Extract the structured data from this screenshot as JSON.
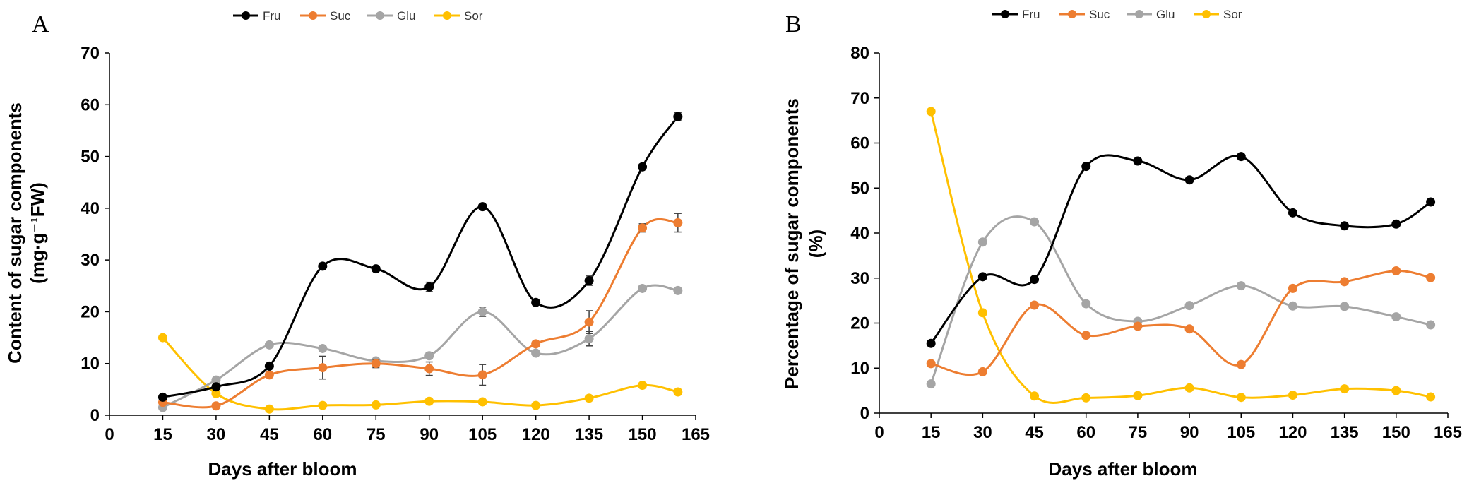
{
  "colors": {
    "Fru": "#000000",
    "Suc": "#ED7D31",
    "Glu": "#A5A5A5",
    "Sor": "#FFC000",
    "axis": "#000000",
    "errorbar": "#404040"
  },
  "legend": [
    "Fru",
    "Suc",
    "Glu",
    "Sor"
  ],
  "chart_data": [
    {
      "panel": "A",
      "type": "line",
      "smooth": true,
      "xlabel": "Days after bloom",
      "ylabel_line1": "Content of sugar components",
      "ylabel_line2": "(mg·g⁻¹FW)",
      "xlim": [
        0,
        165
      ],
      "ylim": [
        0,
        70
      ],
      "xticks": [
        0,
        15,
        30,
        45,
        60,
        75,
        90,
        105,
        120,
        135,
        150,
        165
      ],
      "yticks": [
        0,
        10,
        20,
        30,
        40,
        50,
        60,
        70
      ],
      "legend_position": "top",
      "x": [
        15,
        30,
        45,
        60,
        75,
        90,
        105,
        120,
        135,
        150,
        160
      ],
      "series": [
        {
          "name": "Fru",
          "values": [
            3.5,
            5.5,
            9.5,
            28.8,
            28.3,
            24.8,
            40.3,
            21.8,
            26.0,
            48.0,
            57.7
          ],
          "errors": [
            0.3,
            0.3,
            0.4,
            0.6,
            0.5,
            0.9,
            0.5,
            0.5,
            0.9,
            0.5,
            0.8
          ]
        },
        {
          "name": "Suc",
          "values": [
            2.5,
            1.8,
            7.8,
            9.2,
            10.0,
            9.0,
            7.8,
            13.8,
            18.0,
            36.2,
            37.2
          ],
          "errors": [
            0.3,
            0.3,
            0.5,
            2.2,
            0.8,
            1.3,
            2.0,
            0.5,
            2.2,
            0.8,
            1.8
          ]
        },
        {
          "name": "Glu",
          "values": [
            1.5,
            6.8,
            13.6,
            12.9,
            10.5,
            11.5,
            20.0,
            12.0,
            14.8,
            24.5,
            24.1
          ],
          "errors": [
            0.2,
            0.3,
            0.3,
            0.5,
            0.4,
            0.6,
            0.9,
            0.4,
            1.4,
            0.5,
            0.4
          ]
        },
        {
          "name": "Sor",
          "values": [
            15.0,
            4.2,
            1.2,
            1.9,
            2.0,
            2.7,
            2.6,
            1.9,
            3.3,
            5.8,
            4.5
          ],
          "errors": [
            0,
            0,
            0,
            0,
            0,
            0,
            0,
            0,
            0,
            0,
            0
          ]
        }
      ]
    },
    {
      "panel": "B",
      "type": "line",
      "smooth": true,
      "xlabel": "Days after bloom",
      "ylabel_line1": "Percentage of sugar components",
      "ylabel_line2": "(%)",
      "xlim": [
        0,
        165
      ],
      "ylim": [
        0,
        80
      ],
      "xticks": [
        0,
        15,
        30,
        45,
        60,
        75,
        90,
        105,
        120,
        135,
        150,
        165
      ],
      "yticks": [
        0,
        10,
        20,
        30,
        40,
        50,
        60,
        70,
        80
      ],
      "legend_position": "top",
      "x": [
        15,
        30,
        45,
        60,
        75,
        90,
        105,
        120,
        135,
        150,
        160
      ],
      "series": [
        {
          "name": "Fru",
          "values": [
            15.5,
            30.3,
            29.7,
            54.8,
            56.0,
            51.8,
            57.0,
            44.5,
            41.6,
            42.0,
            46.9
          ]
        },
        {
          "name": "Suc",
          "values": [
            11.0,
            9.2,
            24.0,
            17.3,
            19.3,
            18.7,
            10.8,
            27.7,
            29.2,
            31.6,
            30.1
          ]
        },
        {
          "name": "Glu",
          "values": [
            6.5,
            38.0,
            42.5,
            24.3,
            20.4,
            23.9,
            28.3,
            23.8,
            23.7,
            21.4,
            19.6
          ]
        },
        {
          "name": "Sor",
          "values": [
            67.0,
            22.3,
            3.8,
            3.4,
            3.9,
            5.6,
            3.5,
            4.0,
            5.4,
            5.0,
            3.6
          ]
        }
      ]
    }
  ]
}
